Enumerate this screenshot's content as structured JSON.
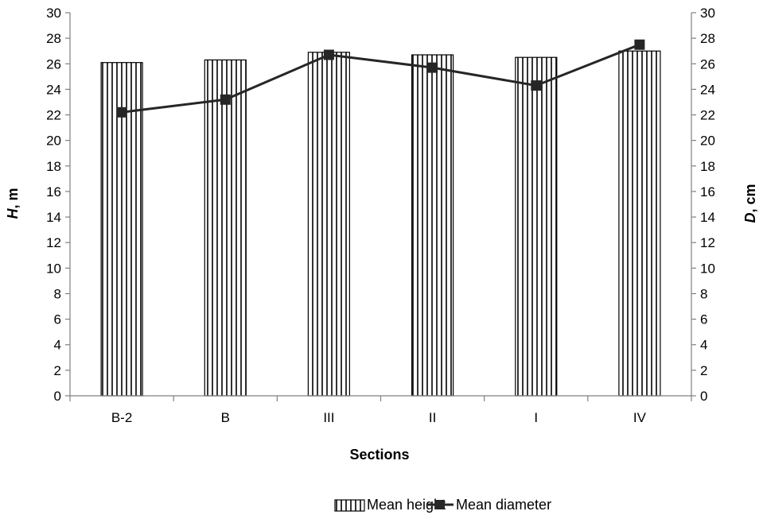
{
  "chart_data": {
    "type": "bar",
    "categories": [
      "B-2",
      "B",
      "III",
      "II",
      "I",
      "IV"
    ],
    "series": [
      {
        "name": "Mean height",
        "kind": "bar",
        "axis": "left",
        "values": [
          26.1,
          26.3,
          26.9,
          26.7,
          26.5,
          27.0
        ]
      },
      {
        "name": "Mean diameter",
        "kind": "line",
        "axis": "right",
        "values": [
          22.2,
          23.2,
          26.7,
          25.7,
          24.3,
          27.5
        ]
      }
    ],
    "xlabel": "Sections",
    "ylabel_left": "H, m",
    "ylabel_right": "D, cm",
    "ylim_left": [
      0,
      30
    ],
    "ylim_right": [
      0,
      30
    ],
    "ytick_step": 2,
    "grid": false,
    "legend_position": "bottom",
    "colors": {
      "bar_stroke": "#000000",
      "bar_hatch": "#000000",
      "line": "#262626",
      "axis": "#808080"
    }
  }
}
